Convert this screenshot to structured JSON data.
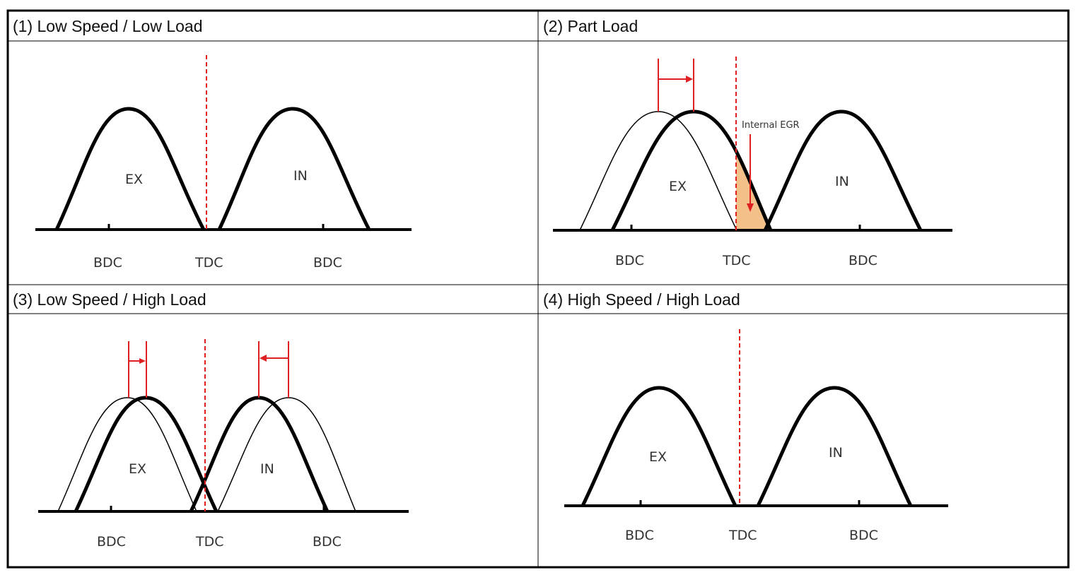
{
  "panels": [
    {
      "title": "(1) Low Speed / Low Load",
      "ex_label": "EX",
      "in_label": "IN",
      "x_labels": [
        "BDC",
        "TDC",
        "BDC"
      ]
    },
    {
      "title": "(2) Part Load",
      "ex_label": "EX",
      "in_label": "IN",
      "x_labels": [
        "BDC",
        "TDC",
        "BDC"
      ],
      "annotation": "Internal EGR"
    },
    {
      "title": "(3) Low Speed / High Load",
      "ex_label": "EX",
      "in_label": "IN",
      "x_labels": [
        "BDC",
        "TDC",
        "BDC"
      ]
    },
    {
      "title": "(4) High Speed / High Load",
      "ex_label": "EX",
      "in_label": "IN",
      "x_labels": [
        "BDC",
        "TDC",
        "BDC"
      ]
    }
  ],
  "colors": {
    "curve": "#000000",
    "marker": "#e02020",
    "egr_fill": "#f4c08a",
    "grid": "#000000"
  }
}
